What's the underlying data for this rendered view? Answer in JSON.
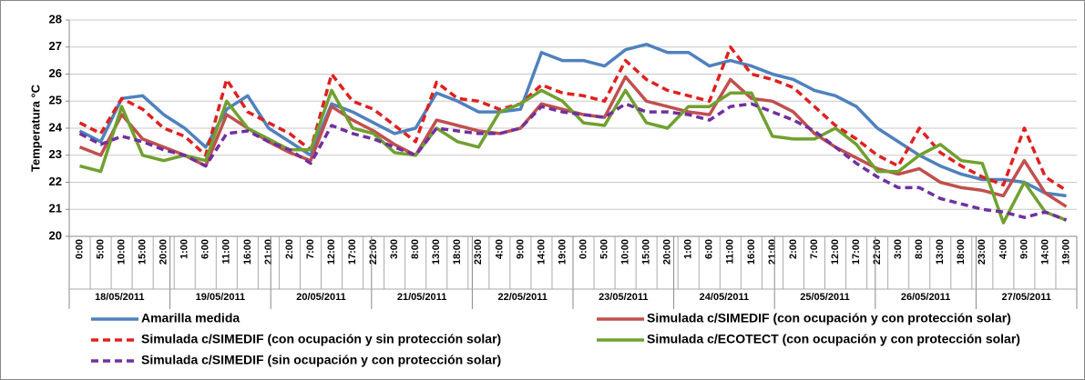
{
  "chart_data": {
    "type": "line",
    "y_label": "Temperatura °C",
    "ylim": [
      20,
      28
    ],
    "yticks": [
      20,
      21,
      22,
      23,
      24,
      25,
      26,
      27,
      28
    ],
    "grid": true,
    "days": [
      {
        "date": "18/05/2011",
        "hours": [
          "0:00",
          "5:00",
          "10:00",
          "15:00",
          "20:00"
        ]
      },
      {
        "date": "19/05/2011",
        "hours": [
          "1:00",
          "6:00",
          "11:00",
          "16:00",
          "21:00"
        ]
      },
      {
        "date": "20/05/2011",
        "hours": [
          "2:00",
          "7:00",
          "12:00",
          "17:00",
          "22:00"
        ]
      },
      {
        "date": "21/05/2011",
        "hours": [
          "3:00",
          "8:00",
          "13:00",
          "18:00",
          "23:00"
        ]
      },
      {
        "date": "22/05/2011",
        "hours": [
          "4:00",
          "9:00",
          "14:00",
          "19:00"
        ]
      },
      {
        "date": "23/05/2011",
        "hours": [
          "0:00",
          "5:00",
          "10:00",
          "15:00",
          "20:00"
        ]
      },
      {
        "date": "24/05/2011",
        "hours": [
          "1:00",
          "6:00",
          "11:00",
          "16:00",
          "21:00"
        ]
      },
      {
        "date": "25/05/2011",
        "hours": [
          "2:00",
          "7:00",
          "12:00",
          "17:00",
          "22:00"
        ]
      },
      {
        "date": "26/05/2011",
        "hours": [
          "3:00",
          "8:00",
          "13:00",
          "18:00",
          "23:00"
        ]
      },
      {
        "date": "27/05/2011",
        "hours": [
          "4:00",
          "9:00",
          "14:00",
          "19:00"
        ]
      }
    ],
    "series": [
      {
        "name": "Amarilla medida",
        "color": "#4f81bd",
        "style": "solid",
        "values": [
          23.9,
          23.5,
          25.1,
          25.2,
          24.5,
          24.0,
          23.3,
          24.7,
          25.2,
          24.0,
          23.5,
          23.0,
          24.9,
          24.6,
          24.2,
          23.8,
          24.0,
          25.3,
          25.0,
          24.6,
          24.6,
          24.7,
          26.8,
          26.5,
          26.5,
          26.3,
          26.9,
          27.1,
          26.8,
          26.8,
          26.3,
          26.5,
          26.3,
          26.0,
          25.8,
          25.4,
          25.2,
          24.8,
          24.0,
          23.5,
          23.0,
          22.6,
          22.3,
          22.1,
          22.1,
          22.0,
          21.6,
          21.5
        ]
      },
      {
        "name": "Simulada c/SIMEDIF (con ocupación y con protección solar)",
        "color": "#c0504d",
        "style": "solid",
        "values": [
          23.3,
          23.0,
          24.5,
          23.6,
          23.3,
          23.0,
          22.6,
          24.5,
          24.0,
          23.5,
          23.1,
          22.8,
          24.8,
          24.3,
          23.9,
          23.4,
          23.0,
          24.3,
          24.1,
          23.9,
          23.8,
          24.0,
          24.9,
          24.7,
          24.5,
          24.4,
          25.9,
          25.0,
          24.8,
          24.6,
          24.5,
          25.8,
          25.1,
          25.0,
          24.6,
          23.8,
          23.3,
          22.9,
          22.5,
          22.3,
          22.5,
          22.0,
          21.8,
          21.7,
          21.5,
          22.8,
          21.6,
          21.1
        ]
      },
      {
        "name": "Simulada c/SIMEDIF (con ocupación y sin protección solar)",
        "color": "#e02020",
        "style": "dashed",
        "values": [
          24.2,
          23.8,
          25.1,
          24.7,
          24.0,
          23.7,
          23.0,
          25.8,
          24.6,
          24.2,
          23.8,
          23.2,
          26.0,
          25.0,
          24.7,
          24.1,
          23.5,
          25.7,
          25.1,
          25.0,
          24.7,
          24.9,
          25.6,
          25.3,
          25.2,
          25.0,
          26.5,
          25.8,
          25.4,
          25.2,
          25.0,
          27.0,
          26.0,
          25.8,
          25.5,
          24.8,
          24.1,
          23.6,
          23.0,
          22.6,
          24.0,
          23.1,
          22.6,
          22.2,
          21.9,
          24.0,
          22.2,
          21.7
        ]
      },
      {
        "name": "Simulada c/ECOTECT (con ocupación y con protección solar)",
        "color": "#70a030",
        "style": "solid",
        "values": [
          22.6,
          22.4,
          24.8,
          23.0,
          22.8,
          23.0,
          22.8,
          25.0,
          24.0,
          23.6,
          23.2,
          23.2,
          25.4,
          24.0,
          23.8,
          23.1,
          23.0,
          24.0,
          23.5,
          23.3,
          24.6,
          24.9,
          25.4,
          25.0,
          24.2,
          24.1,
          25.4,
          24.2,
          24.0,
          24.8,
          24.8,
          25.3,
          25.3,
          23.7,
          23.6,
          23.6,
          24.0,
          23.4,
          22.4,
          22.4,
          23.0,
          23.4,
          22.8,
          22.7,
          20.5,
          22.0,
          20.9,
          20.6
        ]
      },
      {
        "name": "Simulada c/SIMEDIF (sin ocupación y con protección solar)",
        "color": "#7030a0",
        "style": "dashed",
        "values": [
          23.8,
          23.4,
          23.7,
          23.5,
          23.2,
          23.0,
          22.6,
          23.8,
          23.9,
          23.5,
          23.2,
          22.7,
          24.1,
          23.8,
          23.6,
          23.3,
          23.0,
          24.0,
          23.9,
          23.8,
          23.8,
          24.0,
          24.8,
          24.6,
          24.5,
          24.4,
          24.9,
          24.6,
          24.6,
          24.5,
          24.3,
          24.8,
          24.9,
          24.6,
          24.3,
          23.9,
          23.3,
          22.7,
          22.2,
          21.8,
          21.8,
          21.4,
          21.2,
          21.0,
          20.9,
          20.7,
          20.9,
          20.6
        ]
      }
    ]
  }
}
